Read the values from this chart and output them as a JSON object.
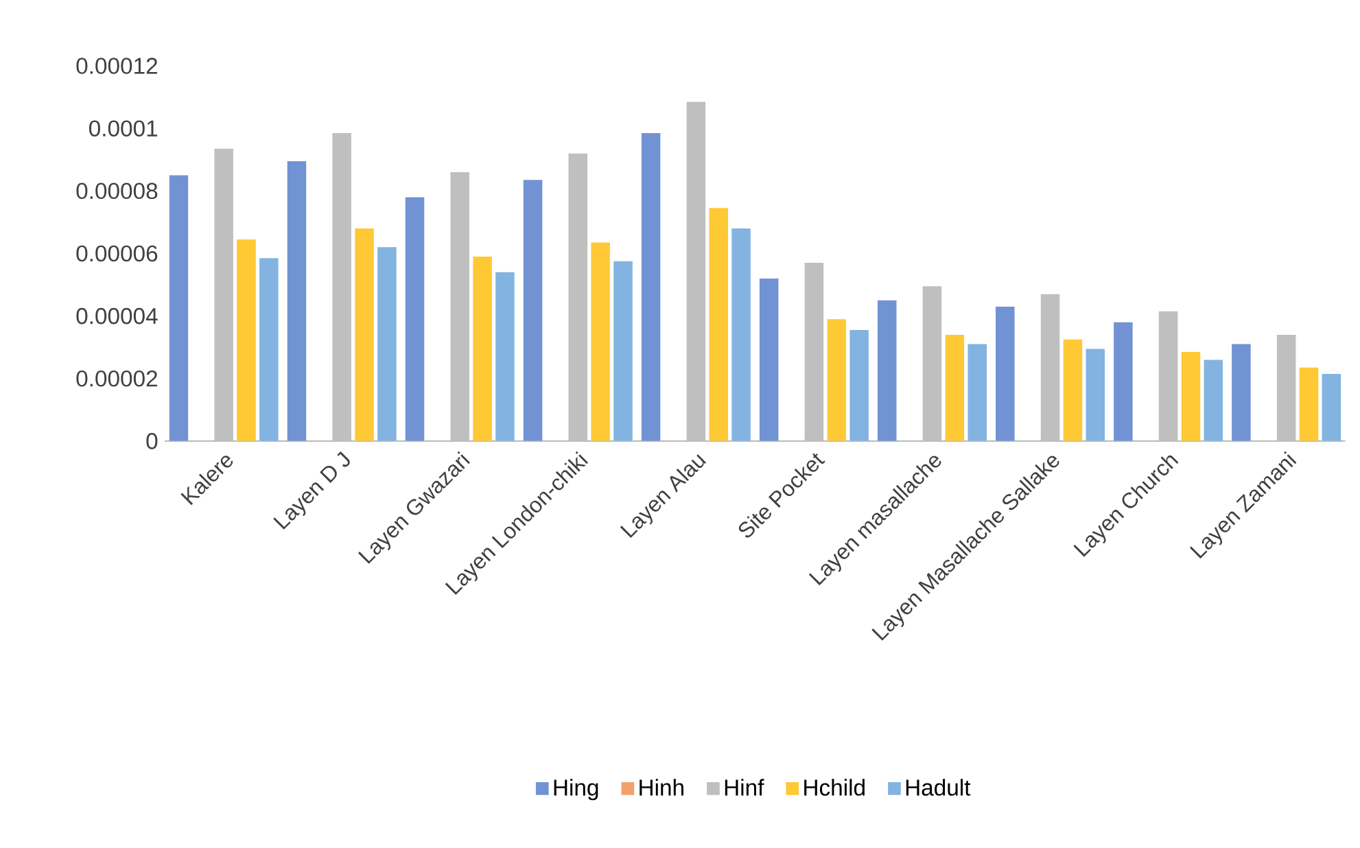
{
  "chart_data": {
    "type": "bar",
    "categories": [
      "Kalere",
      "Layen D J",
      "Layen Gwazari",
      "Layen London-chiki",
      "Layen Alau",
      "Site Pocket",
      "Layen masallache",
      "Layen Masallache Sallake",
      "Layen Church",
      "Layen Zamani"
    ],
    "series": [
      {
        "name": "Hing",
        "color": "#7193d3",
        "values": [
          8.5e-05,
          8.95e-05,
          7.8e-05,
          8.35e-05,
          9.85e-05,
          5.2e-05,
          4.5e-05,
          4.3e-05,
          3.8e-05,
          3.1e-05
        ]
      },
      {
        "name": "Hinh",
        "color": "#f4a06c",
        "values": [
          0,
          0,
          0,
          0,
          0,
          0,
          0,
          0,
          0,
          0
        ]
      },
      {
        "name": "Hinf",
        "color": "#bfbfbf",
        "values": [
          9.35e-05,
          9.85e-05,
          8.6e-05,
          9.2e-05,
          0.0001085,
          5.7e-05,
          4.95e-05,
          4.7e-05,
          4.15e-05,
          3.4e-05
        ]
      },
      {
        "name": "Hchild",
        "color": "#ffc935",
        "values": [
          6.45e-05,
          6.8e-05,
          5.9e-05,
          6.35e-05,
          7.45e-05,
          3.9e-05,
          3.4e-05,
          3.25e-05,
          2.85e-05,
          2.35e-05
        ]
      },
      {
        "name": "Hadult",
        "color": "#83b3e0",
        "values": [
          5.85e-05,
          6.2e-05,
          5.4e-05,
          5.75e-05,
          6.8e-05,
          3.55e-05,
          3.1e-05,
          2.95e-05,
          2.6e-05,
          2.15e-05
        ]
      }
    ],
    "ylim": [
      0,
      0.00012
    ],
    "yticks": [
      {
        "value": 0,
        "label": "0"
      },
      {
        "value": 2e-05,
        "label": "0.00002"
      },
      {
        "value": 4e-05,
        "label": "0.00004"
      },
      {
        "value": 6e-05,
        "label": "0.00006"
      },
      {
        "value": 8e-05,
        "label": "0.00008"
      },
      {
        "value": 0.0001,
        "label": "0.0001"
      },
      {
        "value": 0.00012,
        "label": "0.00012"
      }
    ],
    "grid": false,
    "legend": "bottom"
  }
}
